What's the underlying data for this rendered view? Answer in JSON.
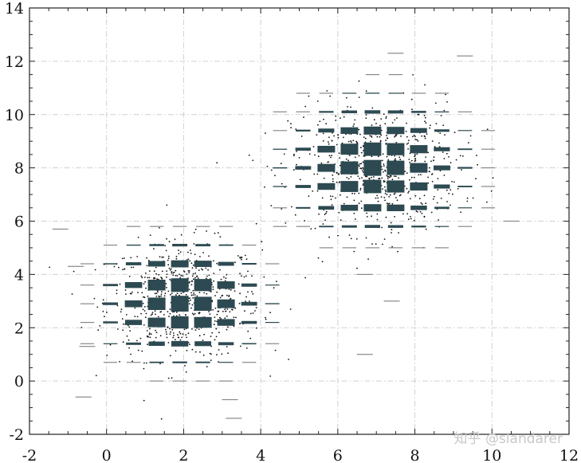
{
  "chart_data": {
    "type": "scatter",
    "title": "",
    "xlabel": "",
    "ylabel": "",
    "xlim": [
      -2,
      12
    ],
    "ylim": [
      -2,
      14
    ],
    "xticks": [
      -2,
      0,
      2,
      4,
      6,
      8,
      10,
      12
    ],
    "yticks": [
      -2,
      0,
      2,
      4,
      6,
      8,
      10,
      12,
      14
    ],
    "x_tick_labels": [
      "-2",
      "0",
      "2",
      "4",
      "6",
      "8",
      "10",
      "12"
    ],
    "y_tick_labels": [
      "-2",
      "0",
      "2",
      "4",
      "6",
      "8",
      "10",
      "12",
      "14"
    ],
    "grid": true,
    "grid_style": "dash-dot",
    "colors": {
      "mark": "#2d4a52",
      "dot": "#111111",
      "grid": "#d0d0d0",
      "axis": "#222222",
      "outlier": "#888888"
    },
    "series": [
      {
        "clusters": [
          {
            "center": [
              2,
              3
            ],
            "spread": [
              1.0,
              1.1
            ],
            "cell_width": 0.6,
            "cell_height": 0.66,
            "cols": [
              -0.5,
              0.1,
              0.7,
              1.3,
              1.9,
              2.5,
              3.1,
              3.7,
              4.3
            ],
            "rows": [
              0,
              0.7,
              1.4,
              2.2,
              2.9,
              3.6,
              4.4,
              5.1,
              5.8
            ]
          },
          {
            "center": [
              7,
              8
            ],
            "spread": [
              1.1,
              1.2
            ],
            "cell_width": 0.6,
            "cell_height": 0.66,
            "cols": [
              4.5,
              5.1,
              5.7,
              6.3,
              6.9,
              7.5,
              8.1,
              8.7,
              9.3,
              9.9,
              10.5
            ],
            "rows": [
              5.0,
              5.8,
              6.5,
              7.3,
              8.0,
              8.7,
              9.4,
              10.1,
              10.8,
              11.5
            ]
          }
        ],
        "extra_points": [
          [
            -1.2,
            5.7
          ],
          [
            -0.8,
            4.3
          ],
          [
            -0.6,
            -0.6
          ],
          [
            -0.5,
            1.3
          ],
          [
            3.3,
            -1.4
          ],
          [
            3.2,
            -0.7
          ],
          [
            6.7,
            1.0
          ],
          [
            7.4,
            3.0
          ],
          [
            7.5,
            12.3
          ],
          [
            9.3,
            12.2
          ],
          [
            10.5,
            6.0
          ],
          [
            6.7,
            4.0
          ]
        ]
      }
    ],
    "watermark": "知乎 @slandarer"
  }
}
